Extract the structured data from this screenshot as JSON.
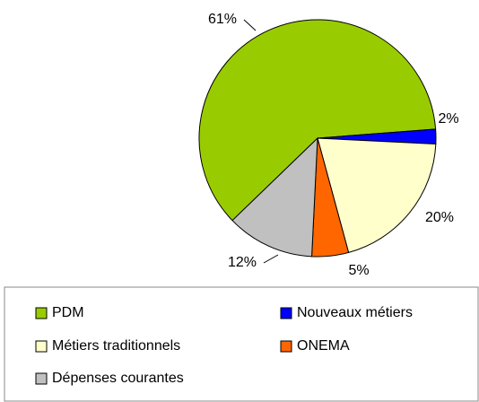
{
  "chart_data": {
    "type": "pie",
    "categories": [
      "PDM",
      "Nouveaux métiers",
      "Métiers traditionnels",
      "ONEMA",
      "Dépenses courantes"
    ],
    "values": [
      61,
      2,
      20,
      5,
      12
    ],
    "value_labels": [
      "61%",
      "2%",
      "20%",
      "5%",
      "12%"
    ],
    "colors": [
      "#99cc00",
      "#0000ff",
      "#ffffcc",
      "#ff6600",
      "#c0c0c0"
    ],
    "legend": "bottom"
  }
}
